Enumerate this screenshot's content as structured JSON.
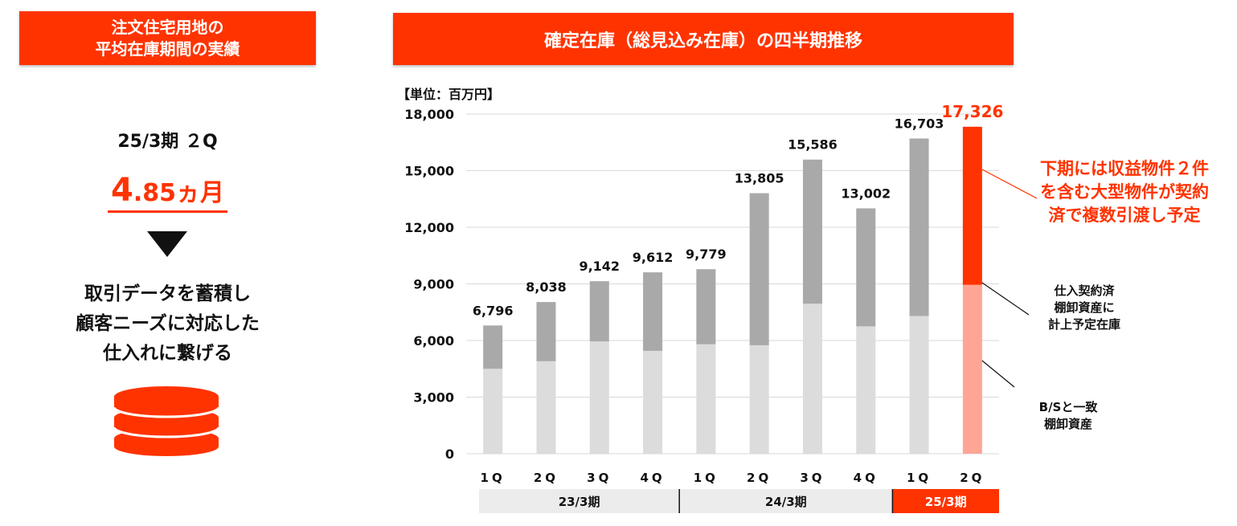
{
  "left_panel": {
    "banner_line1": "注文住宅用地の",
    "banner_line2": "平均在庫期間の実績",
    "period_label": "25/3期 ２Q",
    "metric_big": "4",
    "metric_rest": ".85ヵ月",
    "desc_line1": "取引データを蓄積し",
    "desc_line2": "顧客ニーズに対応した",
    "desc_line3": "仕入れに繋げる",
    "accent_color": "#ff3300",
    "icon": "database-icon"
  },
  "right_panel": {
    "banner": "確定在庫（総見込み在庫）の四半期推移",
    "unit_label": "【単位：百万円】",
    "note_red_line1": "下期には収益物件２件",
    "note_red_line2": "を含む大型物件が契約",
    "note_red_line3": "済で複数引渡し予定",
    "note_planned_line1": "仕入契約済",
    "note_planned_line2": "棚卸資産に",
    "note_planned_line3": "計上予定在庫",
    "note_bs_line1": "B/Sと一致",
    "note_bs_line2": "棚卸資産"
  },
  "chart_data": {
    "type": "bar",
    "stacked": true,
    "categories": [
      "1Q",
      "2Q",
      "3Q",
      "4Q",
      "1Q",
      "2Q",
      "3Q",
      "4Q",
      "1Q",
      "2Q"
    ],
    "groups": [
      {
        "label": "23/3期",
        "from": 0,
        "to": 3
      },
      {
        "label": "24/3期",
        "from": 4,
        "to": 7
      },
      {
        "label": "25/3期",
        "from": 8,
        "to": 9
      }
    ],
    "series": [
      {
        "values": [
          4500,
          4900,
          5950,
          5450,
          5800,
          5750,
          7950,
          6750,
          7300,
          8950
        ]
      },
      {
        "values": [
          2296,
          3138,
          3192,
          4162,
          3979,
          8055,
          7636,
          6252,
          9403,
          8376
        ]
      }
    ],
    "totals": [
      6796,
      8038,
      9142,
      9612,
      9779,
      13805,
      15586,
      13002,
      16703,
      17326
    ],
    "total_labels": [
      "6,796",
      "8,038",
      "9,142",
      "9,612",
      "9,779",
      "13,805",
      "15,586",
      "13,002",
      "16,703",
      "17,326"
    ],
    "ylim": [
      0,
      18000
    ],
    "yticks": [
      0,
      3000,
      6000,
      9000,
      12000,
      15000,
      18000
    ],
    "ytick_labels": [
      "0",
      "3,000",
      "6,000",
      "9,000",
      "12,000",
      "15,000",
      "18,000"
    ],
    "grid": true,
    "colors": {
      "base": "#dcdcdc",
      "top": "#a9a9a9",
      "highlight_base": "#ffa595",
      "highlight_top": "#ff3300",
      "highlight_label": "#ff3300",
      "group_bg": "#ececec",
      "group_highlight": "#ff3300",
      "gridline": "#d9d9d9"
    },
    "highlight_index": 9
  }
}
